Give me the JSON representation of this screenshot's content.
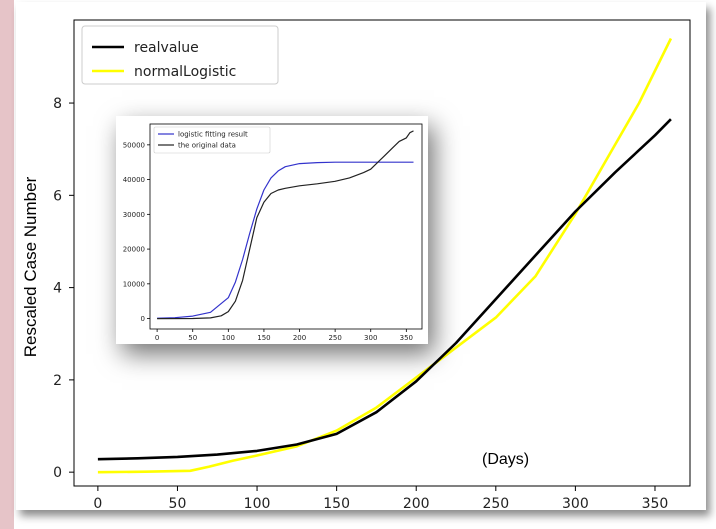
{
  "chart_data": [
    {
      "type": "line",
      "title": "",
      "xlabel": "",
      "ylabel": "Rescaled Case Number",
      "annotation": "(Days)",
      "xlim": [
        -15,
        372
      ],
      "ylim": [
        -0.3,
        9.8
      ],
      "xticks": [
        0,
        50,
        100,
        150,
        200,
        250,
        300,
        350
      ],
      "yticks": [
        0,
        2,
        4,
        6,
        8
      ],
      "legend_position": "top-left",
      "series": [
        {
          "name": "realvalue",
          "color": "#000000",
          "x": [
            0,
            25,
            50,
            75,
            100,
            125,
            150,
            175,
            200,
            225,
            250,
            275,
            300,
            325,
            350,
            360
          ],
          "y": [
            0.28,
            0.3,
            0.33,
            0.38,
            0.46,
            0.6,
            0.83,
            1.3,
            1.97,
            2.8,
            3.75,
            4.7,
            5.65,
            6.5,
            7.3,
            7.65
          ]
        },
        {
          "name": "normalLogistic",
          "color": "#ffff00",
          "x": [
            0,
            30,
            58,
            70,
            85,
            100,
            125,
            150,
            175,
            200,
            225,
            250,
            275,
            300,
            320,
            340,
            360
          ],
          "y": [
            0.0,
            0.01,
            0.03,
            0.12,
            0.25,
            0.36,
            0.56,
            0.9,
            1.4,
            2.05,
            2.7,
            3.35,
            4.25,
            5.6,
            6.8,
            8.0,
            9.4
          ]
        }
      ]
    },
    {
      "type": "line",
      "title": "",
      "xlabel": "",
      "ylabel": "",
      "xlim": [
        -10,
        372
      ],
      "ylim": [
        -3000,
        56000
      ],
      "xticks": [
        0,
        50,
        100,
        150,
        200,
        250,
        300,
        350
      ],
      "yticks": [
        0,
        10000,
        20000,
        30000,
        40000,
        50000
      ],
      "legend_position": "top-left",
      "series": [
        {
          "name": "logistic fitting result",
          "color": "#3333cc",
          "x": [
            0,
            25,
            50,
            75,
            100,
            110,
            120,
            130,
            140,
            150,
            160,
            170,
            180,
            200,
            225,
            250,
            300,
            360
          ],
          "y": [
            100,
            250,
            700,
            1800,
            6000,
            10500,
            17000,
            24500,
            31500,
            37000,
            40500,
            42500,
            43700,
            44600,
            44900,
            45000,
            45000,
            45000
          ]
        },
        {
          "name": "the original data",
          "color": "#222222",
          "x": [
            0,
            50,
            75,
            90,
            100,
            110,
            120,
            130,
            140,
            150,
            160,
            170,
            180,
            200,
            225,
            250,
            270,
            290,
            300,
            310,
            320,
            330,
            340,
            350,
            355,
            360
          ],
          "y": [
            0,
            10,
            200,
            800,
            2000,
            5000,
            11000,
            20000,
            29000,
            33500,
            36000,
            37000,
            37500,
            38200,
            38800,
            39500,
            40500,
            42000,
            43000,
            45000,
            47000,
            49000,
            51000,
            52000,
            53500,
            54000
          ]
        }
      ]
    }
  ]
}
